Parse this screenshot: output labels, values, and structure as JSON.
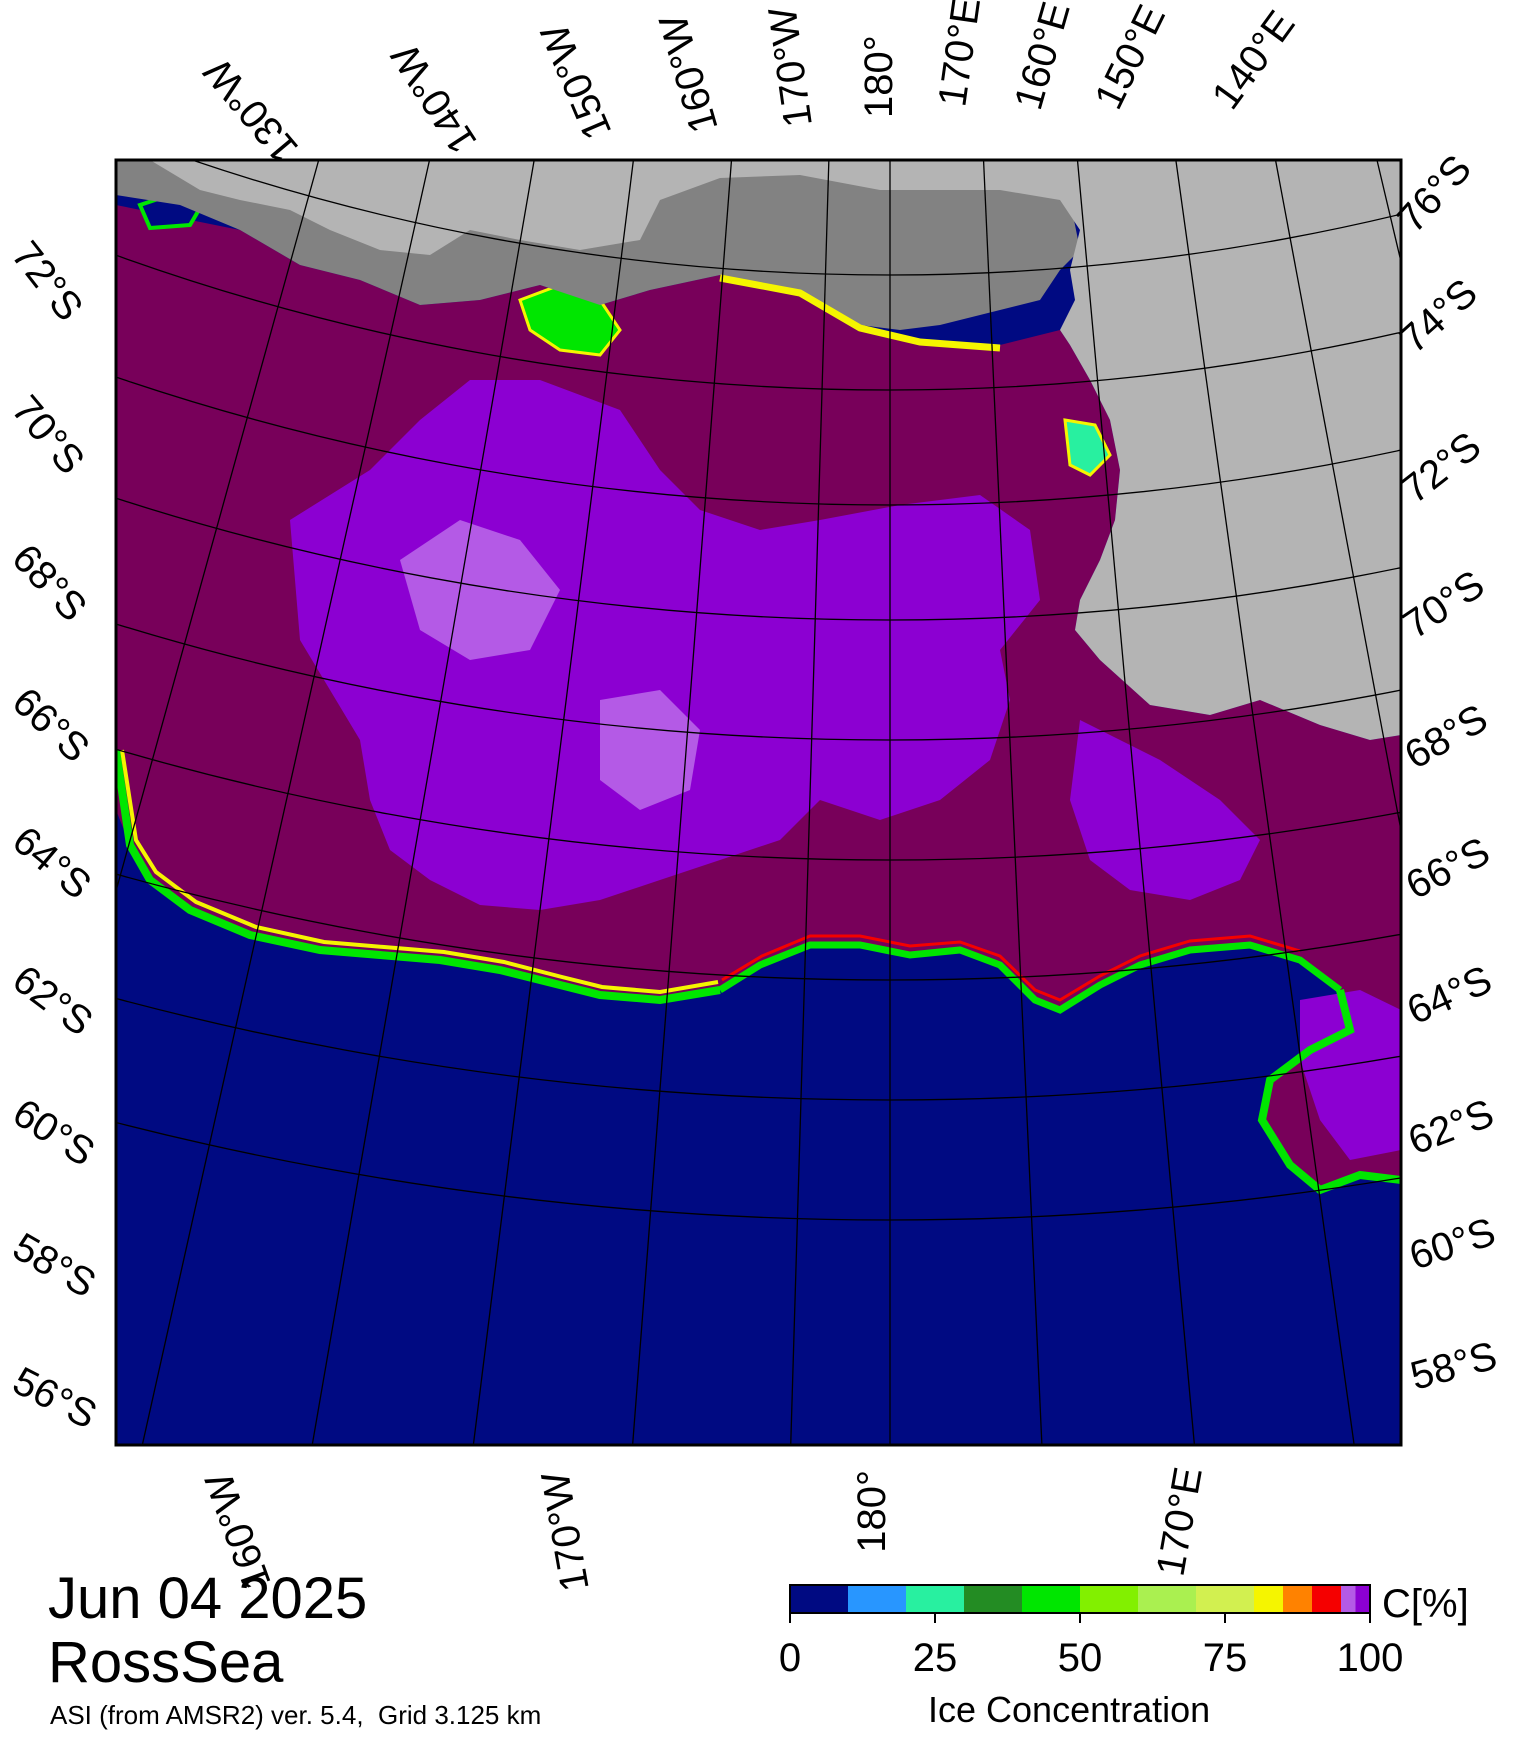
{
  "map": {
    "date": "Jun 04 2025",
    "region": "RossSea",
    "source": "ASI (from AMSR2) ver. 5.4,  Grid 3.125 km",
    "top_lon_labels": [
      "130°W",
      "140°W",
      "150°W",
      "160°W",
      "170°W",
      "180°",
      "170°E",
      "160°E",
      "150°E",
      "140°E"
    ],
    "bottom_lon_labels": [
      "160°W",
      "170°W",
      "180°",
      "170°E"
    ],
    "left_lat_labels": [
      "72°S",
      "70°S",
      "68°S",
      "66°S",
      "64°S",
      "62°S",
      "60°S",
      "58°S",
      "56°S"
    ],
    "right_lat_labels": [
      "76°S",
      "74°S",
      "72°S",
      "70°S",
      "68°S",
      "66°S",
      "64°S",
      "62°S",
      "60°S",
      "58°S"
    ],
    "colors": {
      "ocean": "#000a82",
      "land": "#b4b4b4",
      "shelf": "#828282",
      "ice_100": "#78005a",
      "ice_95": "#8c00d2",
      "ice_90": "#b45ae6"
    }
  },
  "colorbar": {
    "title": "Ice Concentration",
    "unit": "C[%]",
    "ticks": [
      "0",
      "25",
      "50",
      "75",
      "100"
    ],
    "colors": [
      "#000a82",
      "#2896ff",
      "#28f0a0",
      "#238c23",
      "#00e600",
      "#82f000",
      "#aaf050",
      "#d2f050",
      "#f5f500",
      "#ff8200",
      "#f50000",
      "#b45ae6",
      "#8c00d2"
    ],
    "breaks": [
      0,
      10,
      20,
      30,
      40,
      50,
      60,
      70,
      80,
      85,
      90,
      95,
      97.5,
      100
    ]
  }
}
